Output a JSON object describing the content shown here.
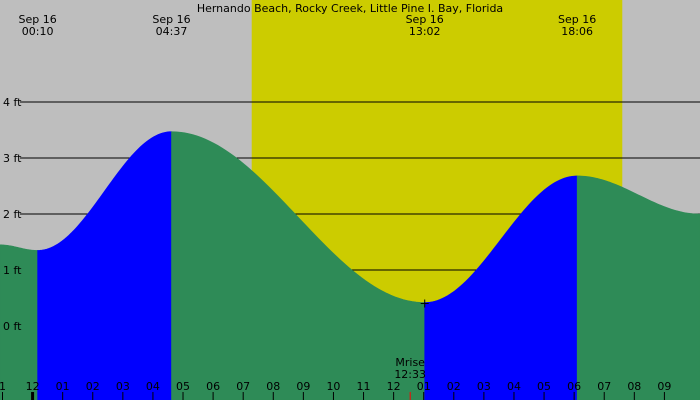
{
  "chart_data": {
    "type": "area",
    "title": "Hernando Beach, Rocky Creek, Little Pine I. Bay, Florida",
    "y_unit": "ft",
    "ylim": [
      -1.32,
      5.82
    ],
    "xlim_hours": [
      -1.083,
      22.183
    ],
    "y_ticks": [
      {
        "value": 4,
        "label": "4 ft"
      },
      {
        "value": 3,
        "label": "3 ft"
      },
      {
        "value": 2,
        "label": "2 ft"
      },
      {
        "value": 1,
        "label": "1 ft"
      },
      {
        "value": 0,
        "label": "0 ft"
      }
    ],
    "hour_ticks": [
      {
        "hour": -1,
        "label": "1"
      },
      {
        "hour": 0,
        "label": "12"
      },
      {
        "hour": 1,
        "label": "01"
      },
      {
        "hour": 2,
        "label": "02"
      },
      {
        "hour": 3,
        "label": "03"
      },
      {
        "hour": 4,
        "label": "04"
      },
      {
        "hour": 5,
        "label": "05"
      },
      {
        "hour": 6,
        "label": "06"
      },
      {
        "hour": 7,
        "label": "07"
      },
      {
        "hour": 8,
        "label": "08"
      },
      {
        "hour": 9,
        "label": "09"
      },
      {
        "hour": 10,
        "label": "10"
      },
      {
        "hour": 11,
        "label": "11"
      },
      {
        "hour": 12,
        "label": "12"
      },
      {
        "hour": 13,
        "label": "01"
      },
      {
        "hour": 14,
        "label": "02"
      },
      {
        "hour": 15,
        "label": "03"
      },
      {
        "hour": 16,
        "label": "04"
      },
      {
        "hour": 17,
        "label": "05"
      },
      {
        "hour": 18,
        "label": "06"
      },
      {
        "hour": 19,
        "label": "07"
      },
      {
        "hour": 20,
        "label": "08"
      },
      {
        "hour": 21,
        "label": "09"
      }
    ],
    "tide_extremes": [
      {
        "date": "Sep 16",
        "time": "00:10",
        "hour": 0.167,
        "height": 1.35,
        "kind": "low"
      },
      {
        "date": "Sep 16",
        "time": "04:37",
        "hour": 4.617,
        "height": 3.47,
        "kind": "high"
      },
      {
        "date": "Sep 16",
        "time": "13:02",
        "hour": 13.033,
        "height": 0.42,
        "kind": "low"
      },
      {
        "date": "Sep 16",
        "time": "18:06",
        "hour": 18.1,
        "height": 2.68,
        "kind": "high"
      }
    ],
    "curve_bounds": {
      "start": {
        "hour": -1.083,
        "height": 1.45
      },
      "end": {
        "hour": 22.183,
        "height": 2.0
      }
    },
    "daylight": {
      "start_hour": 7.283,
      "end_hour": 19.6
    },
    "moonrise": {
      "label": "Mrise",
      "time": "12:33",
      "hour": 12.55
    },
    "colors": {
      "background": "#bebebe",
      "daylight": "#cccc00",
      "rising_tide": "#0000ff",
      "falling_tide": "#2e8b57",
      "grid": "#000000",
      "moonrise_tick": "#ff0000"
    }
  }
}
